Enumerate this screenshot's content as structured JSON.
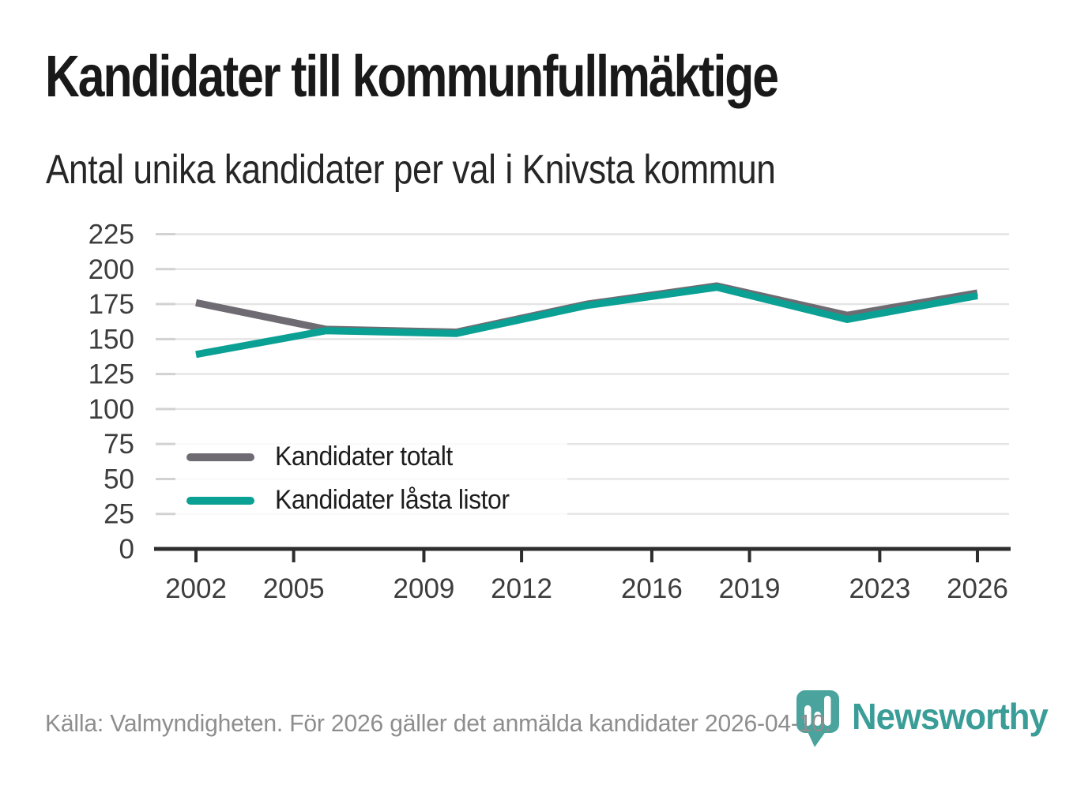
{
  "title": "Kandidater till kommunfullmäktige",
  "subtitle": "Antal unika kandidater per val i Knivsta kommun",
  "source": "Källa: Valmyndigheten. För 2026 gäller det anmälda kandidater 2026-04-10.",
  "brand": {
    "name": "Newsworthy",
    "color": "#3a9d97"
  },
  "colors": {
    "axis": "#2d2d2d",
    "grid": "#e4e4e4",
    "y_tick_stub": "#d2d2d2",
    "tick_label": "#3d3d3d",
    "series_total": "#6f6b72",
    "series_locked": "#0ba094"
  },
  "chart_data": {
    "type": "line",
    "title": "Kandidater till kommunfullmäktige",
    "subtitle": "Antal unika kandidater per val i Knivsta kommun",
    "x": [
      2002,
      2006,
      2010,
      2014,
      2018,
      2022,
      2026
    ],
    "series": [
      {
        "name": "Kandidater totalt",
        "color": "#6f6b72",
        "values": [
          176,
          157,
          155,
          175,
          188,
          167,
          183
        ]
      },
      {
        "name": "Kandidater låsta listor",
        "color": "#0ba094",
        "values": [
          139,
          156,
          154,
          174,
          187,
          164,
          181
        ]
      }
    ],
    "x_ticks": [
      2002,
      2005,
      2009,
      2012,
      2016,
      2019,
      2023,
      2026
    ],
    "y_ticks": [
      0,
      25,
      50,
      75,
      100,
      125,
      150,
      175,
      200,
      225
    ],
    "xlim": [
      2002,
      2026
    ],
    "ylim": [
      0,
      225
    ],
    "grid": "horizontal",
    "legend_position": "inside-left-bottom",
    "xlabel": "",
    "ylabel": ""
  }
}
